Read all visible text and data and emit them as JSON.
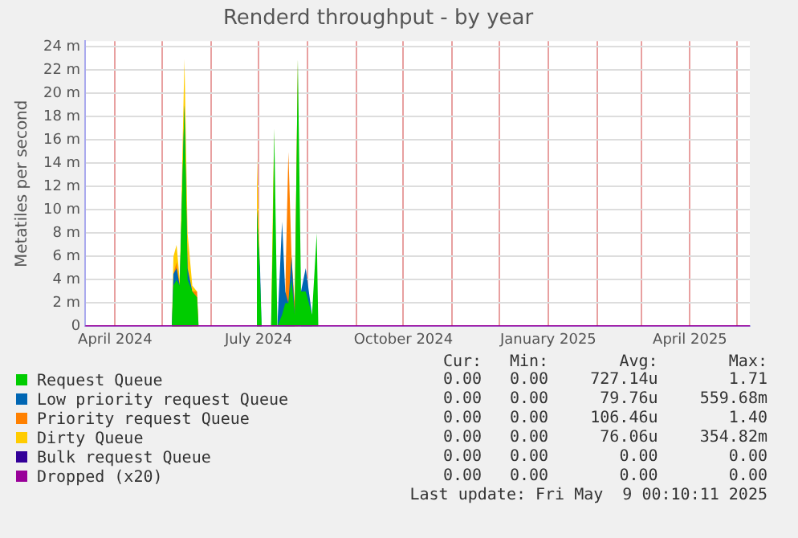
{
  "chart_data": {
    "type": "area",
    "title": "Renderd throughput - by year",
    "ylabel": "Metatiles per second",
    "stacked": true,
    "grid": true,
    "legend": "bottom",
    "x": [
      "2024-03-13",
      "2024-05-07",
      "2024-05-08",
      "2024-05-10",
      "2024-05-12",
      "2024-05-15",
      "2024-05-17",
      "2024-05-20",
      "2024-05-23",
      "2024-05-24",
      "2024-06-29",
      "2024-06-30",
      "2024-07-02",
      "2024-07-03",
      "2024-07-09",
      "2024-07-10",
      "2024-07-11",
      "2024-07-13",
      "2024-07-16",
      "2024-07-18",
      "2024-07-20",
      "2024-07-22",
      "2024-07-24",
      "2024-07-26",
      "2024-07-28",
      "2024-07-31",
      "2024-08-02",
      "2024-08-04",
      "2024-08-07",
      "2024-08-08",
      "2025-05-09"
    ],
    "series": [
      {
        "name": "Request Queue",
        "color": "#00cc00",
        "values": [
          0,
          0,
          3.5,
          4,
          3.5,
          19,
          4,
          3,
          2.5,
          0,
          0,
          10,
          4,
          0,
          0,
          7,
          17,
          0,
          1,
          2,
          2,
          4,
          1,
          23,
          3,
          3,
          2,
          1,
          8,
          0,
          0
        ]
      },
      {
        "name": "Low priority request Queue",
        "color": "#0066b3",
        "values": [
          null,
          0,
          1,
          1,
          0,
          0,
          1,
          0,
          null,
          null,
          null,
          0,
          1,
          0,
          null,
          null,
          null,
          0,
          8,
          1,
          0,
          2,
          0,
          null,
          0,
          2,
          1,
          0,
          null,
          null,
          null
        ]
      },
      {
        "name": "Priority request Queue",
        "color": "#ff8000",
        "values": [
          null,
          null,
          0,
          0.5,
          0,
          null,
          null,
          0,
          0.5,
          0,
          null,
          null,
          null,
          null,
          null,
          null,
          null,
          null,
          null,
          0,
          13,
          0,
          1,
          0,
          null,
          null,
          null,
          null,
          null,
          null,
          null
        ]
      },
      {
        "name": "Dirty Queue",
        "color": "#ffcc00",
        "values": [
          null,
          0,
          1.5,
          1.5,
          0.5,
          4,
          3,
          0.5,
          0,
          null,
          0,
          4.5,
          0,
          null,
          0,
          2,
          0,
          null,
          null,
          null,
          null,
          null,
          null,
          null,
          null,
          null,
          null,
          null,
          null,
          null,
          null
        ]
      },
      {
        "name": "Bulk request Queue",
        "color": "#330099",
        "values": [
          null,
          null,
          null,
          null,
          null,
          null,
          null,
          null,
          null,
          null,
          null,
          null,
          null,
          null,
          null,
          null,
          null,
          null,
          null,
          null,
          null,
          null,
          null,
          null,
          null,
          null,
          null,
          null,
          null,
          null,
          null
        ]
      },
      {
        "name": "Dropped (x20)",
        "type": "line",
        "color": "#990099",
        "values": [
          0,
          0,
          0,
          0,
          0,
          0,
          0,
          0,
          0,
          0,
          0,
          0,
          0,
          0,
          0,
          0,
          0,
          0,
          0,
          0,
          0,
          0,
          0,
          0,
          0,
          0,
          0,
          0,
          0,
          0,
          0
        ]
      }
    ],
    "xlim": [
      "2024-03-13",
      "2025-05-09"
    ],
    "xticks": [
      {
        "value": "2024-04-01",
        "label": "April 2024"
      },
      {
        "value": "2024-05-01",
        "label": null
      },
      {
        "value": "2024-06-01",
        "label": null
      },
      {
        "value": "2024-07-01",
        "label": "July 2024"
      },
      {
        "value": "2024-08-01",
        "label": null
      },
      {
        "value": "2024-09-01",
        "label": null
      },
      {
        "value": "2024-10-01",
        "label": "October 2024"
      },
      {
        "value": "2024-11-01",
        "label": null
      },
      {
        "value": "2024-12-01",
        "label": null
      },
      {
        "value": "2025-01-01",
        "label": "January 2025"
      },
      {
        "value": "2025-02-01",
        "label": null
      },
      {
        "value": "2025-03-01",
        "label": null
      },
      {
        "value": "2025-04-01",
        "label": "April 2025"
      },
      {
        "value": "2025-05-01",
        "label": null
      }
    ],
    "ylim": [
      0,
      24.5
    ],
    "yticks": [
      0,
      {
        "value": 2,
        "label": "2 m"
      },
      {
        "value": 4,
        "label": "4 m"
      },
      {
        "value": 6,
        "label": "6 m"
      },
      {
        "value": 8,
        "label": "8 m"
      },
      {
        "value": 10,
        "label": "10 m"
      },
      {
        "value": 12,
        "label": "12 m"
      },
      {
        "value": 14,
        "label": "14 m"
      },
      {
        "value": 16,
        "label": "16 m"
      },
      {
        "value": 18,
        "label": "18 m"
      },
      {
        "value": 20,
        "label": "20 m"
      },
      {
        "value": 22,
        "label": "22 m"
      },
      {
        "value": 24,
        "label": "24 m"
      }
    ],
    "annotations": [
      "Cur:",
      "Min:",
      "Avg:",
      "Max:",
      "0.00",
      "0.00",
      "727.14u",
      "1.71",
      "0.00",
      "0.00",
      "79.76u",
      "559.68m",
      "0.00",
      "0.00",
      "106.46u",
      "1.40",
      "0.00",
      "0.00",
      "76.06u",
      "354.82m",
      "0.00",
      "0.00",
      "0.00",
      "0.00",
      "0.00",
      "0.00",
      "0.00",
      "0.00",
      "Last update: Fri May  9 00:10:11 2025"
    ]
  }
}
